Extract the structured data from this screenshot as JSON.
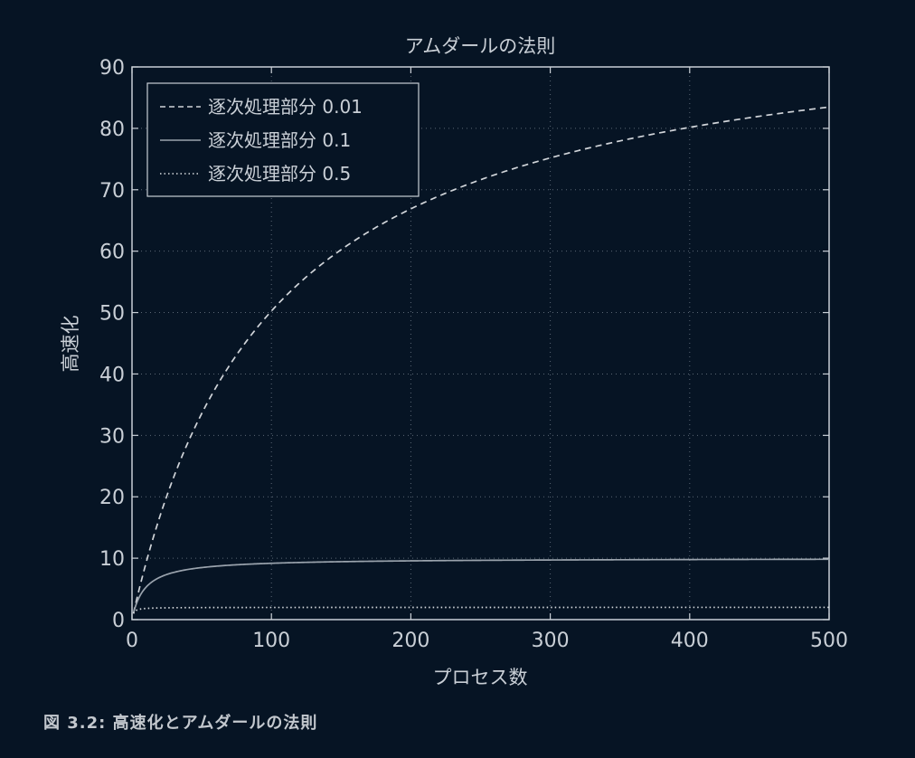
{
  "chart_data": {
    "type": "line",
    "title": "アムダールの法則",
    "xlabel": "プロセス数",
    "ylabel": "高速化",
    "xlim": [
      0,
      500
    ],
    "ylim": [
      0,
      90
    ],
    "xticks": [
      0,
      100,
      200,
      300,
      400,
      500
    ],
    "yticks": [
      0,
      10,
      20,
      30,
      40,
      50,
      60,
      70,
      80,
      90
    ],
    "grid": true,
    "legend_position": "top-left",
    "series": [
      {
        "name": "逐次処理部分 0.01",
        "serial_fraction": 0.01,
        "line_style": "dashed",
        "color": "#d0d4d9",
        "x": [
          1,
          10,
          50,
          100,
          200,
          300,
          400,
          500
        ],
        "y": [
          1.0,
          9.2,
          33.6,
          50.3,
          66.9,
          75.2,
          80.2,
          83.5
        ]
      },
      {
        "name": "逐次処理部分 0.1",
        "serial_fraction": 0.1,
        "line_style": "solid",
        "color": "#9aa3ad",
        "x": [
          1,
          10,
          50,
          100,
          200,
          300,
          400,
          500
        ],
        "y": [
          1.0,
          5.3,
          8.5,
          9.2,
          9.6,
          9.7,
          9.8,
          9.8
        ]
      },
      {
        "name": "逐次処理部分 0.5",
        "serial_fraction": 0.5,
        "line_style": "dotted",
        "color": "#d7dbdf",
        "x": [
          1,
          10,
          50,
          100,
          200,
          300,
          400,
          500
        ],
        "y": [
          1.0,
          1.8,
          1.96,
          1.98,
          1.99,
          1.99,
          2.0,
          2.0
        ]
      }
    ]
  },
  "caption": "図 3.2: 高速化とアムダールの法則"
}
